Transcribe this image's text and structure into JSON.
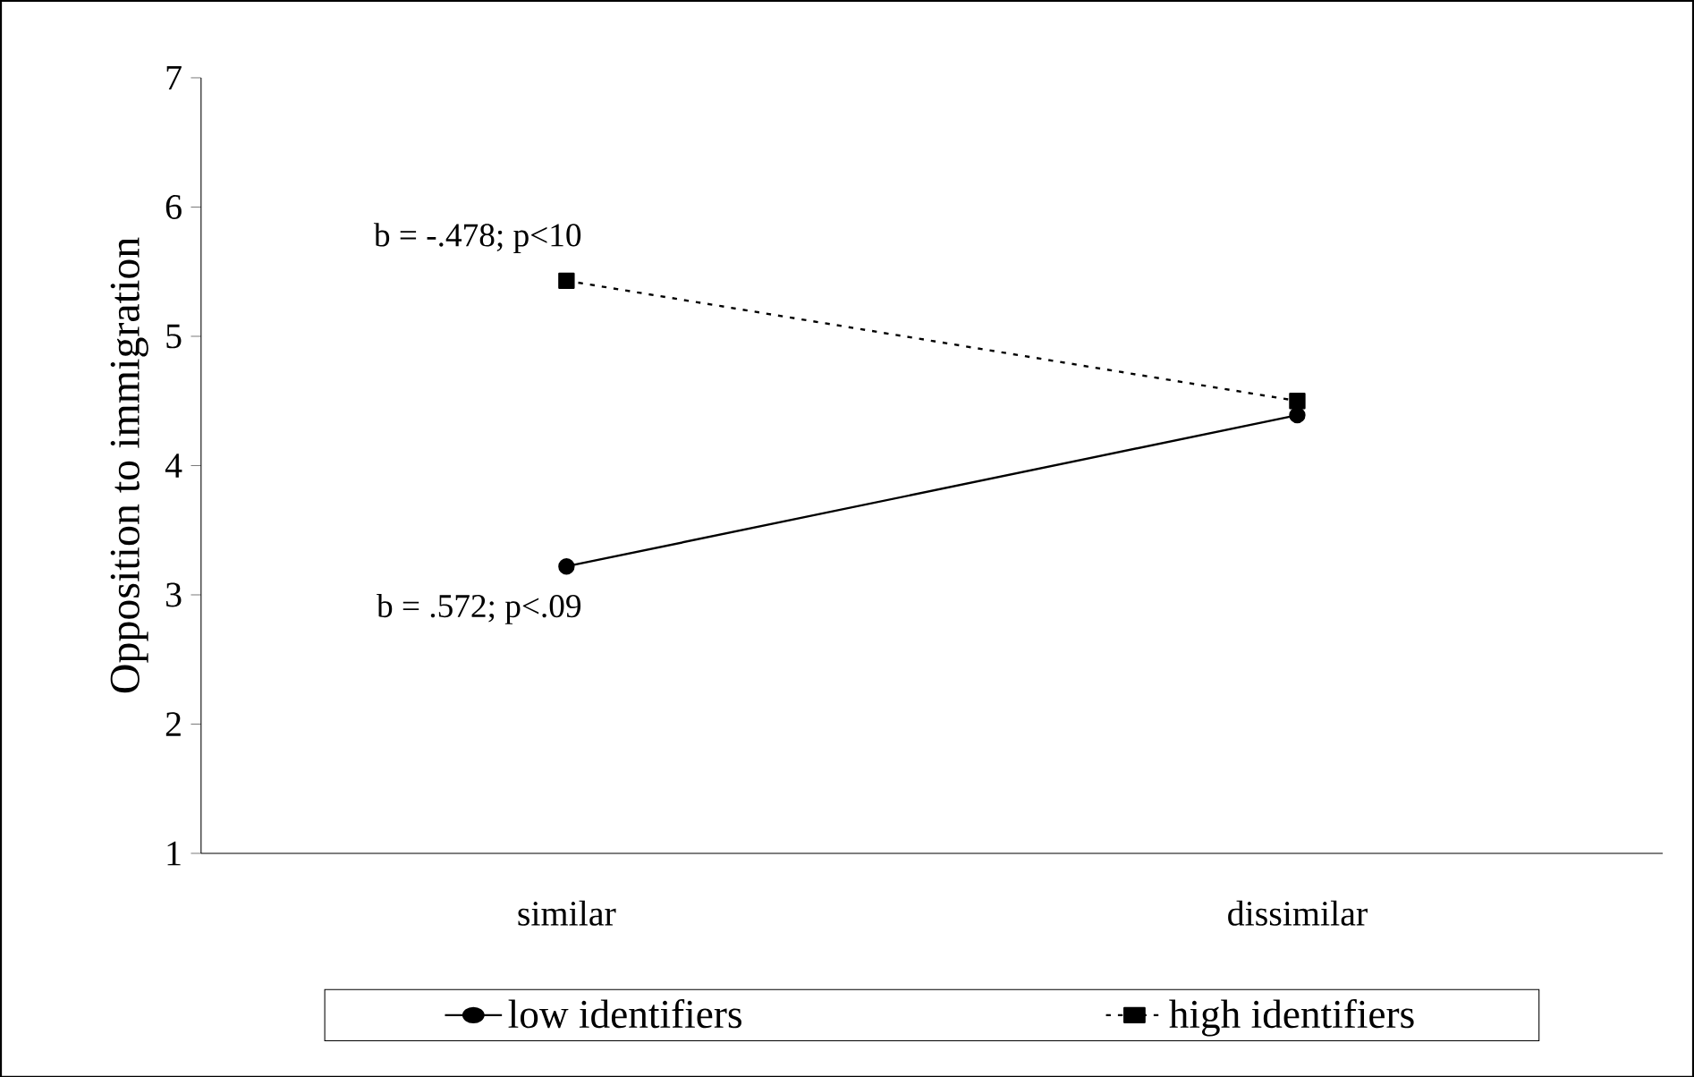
{
  "chart_data": {
    "type": "line",
    "ylabel": "Opposition to immigration",
    "categories": [
      "similar",
      "dissimilar"
    ],
    "series": [
      {
        "name": "low identifiers",
        "color": "#000000",
        "values": [
          3.22,
          4.39
        ],
        "marker": "circle",
        "line_style": "solid"
      },
      {
        "name": "high identifiers",
        "color": "#000000",
        "values": [
          5.43,
          4.5
        ],
        "marker": "square",
        "line_style": "dotted"
      }
    ],
    "ylim": [
      1,
      7
    ],
    "yticks": [
      1,
      2,
      3,
      4,
      5,
      6,
      7
    ],
    "legend": "bottom",
    "annotations": [
      {
        "text": "b = -.478;  p<10",
        "x": "similar",
        "y": 5.43
      },
      {
        "text": "b = .572;  p<.09",
        "x": "similar",
        "y": 3.22
      }
    ]
  }
}
